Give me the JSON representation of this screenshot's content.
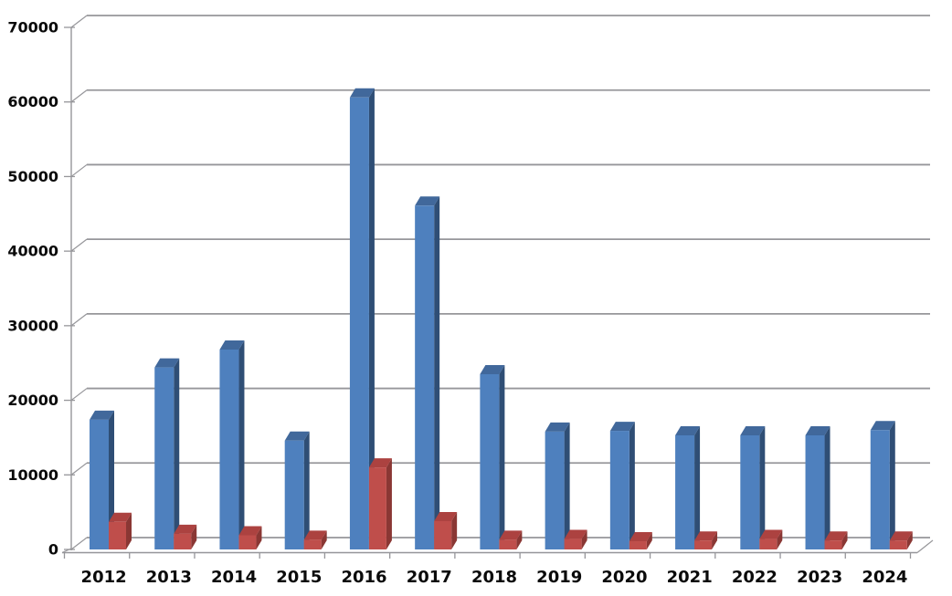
{
  "chart_data": {
    "type": "bar",
    "style": "3d-clustered-columns",
    "title": "",
    "xlabel": "",
    "ylabel": "",
    "categories": [
      "2012",
      "2013",
      "2014",
      "2015",
      "2016",
      "2017",
      "2018",
      "2019",
      "2020",
      "2021",
      "2022",
      "2023",
      "2024"
    ],
    "series": [
      {
        "name": "series-1-blue",
        "color": "#4E80BE",
        "color_top": "#41689B",
        "color_side": "#2F4E75",
        "values": [
          17400,
          24400,
          26800,
          14600,
          60600,
          46100,
          23500,
          15800,
          15900,
          15300,
          15300,
          15300,
          16000
        ]
      },
      {
        "name": "series-2-red",
        "color": "#BF4E4B",
        "color_top": "#AC4240",
        "color_side": "#8A3734",
        "values": [
          3700,
          2100,
          1900,
          1300,
          11000,
          3800,
          1300,
          1400,
          1100,
          1200,
          1400,
          1200,
          1200
        ]
      }
    ],
    "ylim": [
      0,
      70000
    ],
    "ytick_step": 10000,
    "ytick_labels": [
      "0",
      "10000",
      "20000",
      "30000",
      "40000",
      "50000",
      "60000",
      "70000"
    ],
    "grid": true,
    "legend": "none",
    "axis_color": "#96969a",
    "label_color": "#0a0a0a",
    "background": "#ffffff"
  }
}
